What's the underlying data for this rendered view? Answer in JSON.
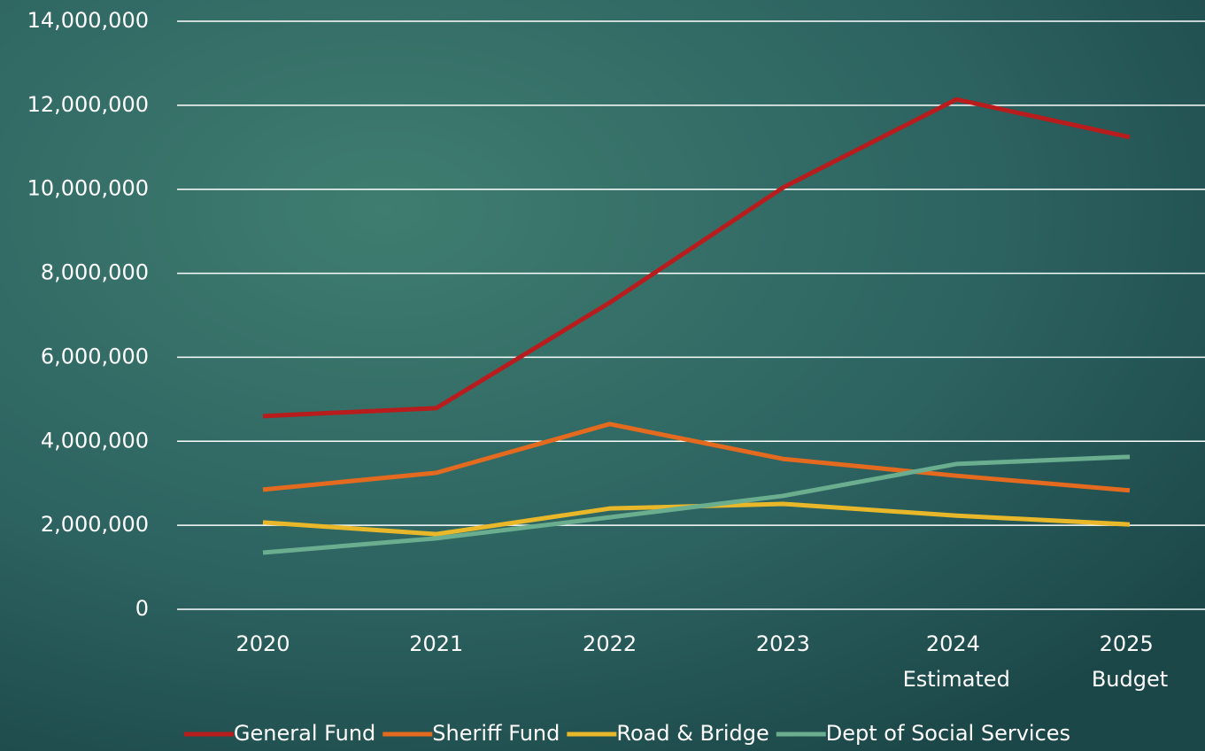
{
  "chart_data": {
    "type": "line",
    "categories": [
      "2020",
      "2021",
      "2022",
      "2023",
      "2024 Estimated",
      "2025 Budget"
    ],
    "series": [
      {
        "name": "General Fund",
        "color": "#b81c1c",
        "values": [
          4600000,
          4790000,
          7300000,
          10040000,
          12140000,
          11240000
        ]
      },
      {
        "name": "Sheriff Fund",
        "color": "#e36a1e",
        "values": [
          2850000,
          3250000,
          4410000,
          3580000,
          3180000,
          2830000
        ]
      },
      {
        "name": "Road & Bridge",
        "color": "#e8b82a",
        "values": [
          2070000,
          1790000,
          2400000,
          2510000,
          2230000,
          2020000
        ]
      },
      {
        "name": "Dept of Social Services",
        "color": "#6aae8f",
        "values": [
          1350000,
          1690000,
          2190000,
          2700000,
          3460000,
          3630000
        ]
      }
    ],
    "ylim": [
      0,
      14000000
    ],
    "yticks": [
      0,
      {
        "value": 2000000,
        "label": "2,000,000"
      },
      {
        "value": 4000000,
        "label": "4,000,000"
      },
      {
        "value": 6000000,
        "label": "6,000,000"
      },
      {
        "value": 8000000,
        "label": "8,000,000"
      },
      {
        "value": 10000000,
        "label": "10,000,000"
      },
      {
        "value": 12000000,
        "label": "12,000,000"
      },
      {
        "value": 14000000,
        "label": "14,000,000"
      }
    ],
    "grid": true,
    "legend": "bottom"
  }
}
